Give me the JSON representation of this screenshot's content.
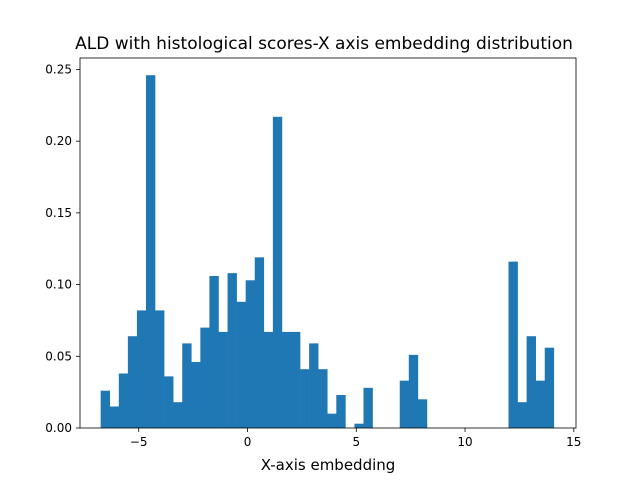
{
  "chart_data": {
    "type": "bar",
    "title": "ALD with histological scores-X axis embedding distribution",
    "xlabel": "X-axis embedding",
    "ylabel": "",
    "xlim": [
      -7.7,
      15.1
    ],
    "ylim": [
      0,
      0.258
    ],
    "x_ticks": [
      -5,
      0,
      5,
      10,
      15
    ],
    "y_ticks": [
      0.0,
      0.05,
      0.1,
      0.15,
      0.2,
      0.25
    ],
    "grid": false,
    "bar_color": "#1f77b4",
    "bin_start": -6.75,
    "bin_width": 0.4166,
    "values": [
      0.026,
      0.015,
      0.038,
      0.064,
      0.082,
      0.246,
      0.082,
      0.036,
      0.018,
      0.059,
      0.046,
      0.07,
      0.106,
      0.067,
      0.108,
      0.088,
      0.103,
      0.119,
      0.067,
      0.217,
      0.067,
      0.067,
      0.041,
      0.059,
      0.041,
      0.01,
      0.023,
      0.0,
      0.003,
      0.028,
      0.0,
      0.0,
      0.0,
      0.033,
      0.051,
      0.02,
      0.0,
      0.0,
      0.0,
      0.0,
      0.0,
      0.0,
      0.0,
      0.0,
      0.0,
      0.116,
      0.018,
      0.064,
      0.033,
      0.056
    ]
  }
}
